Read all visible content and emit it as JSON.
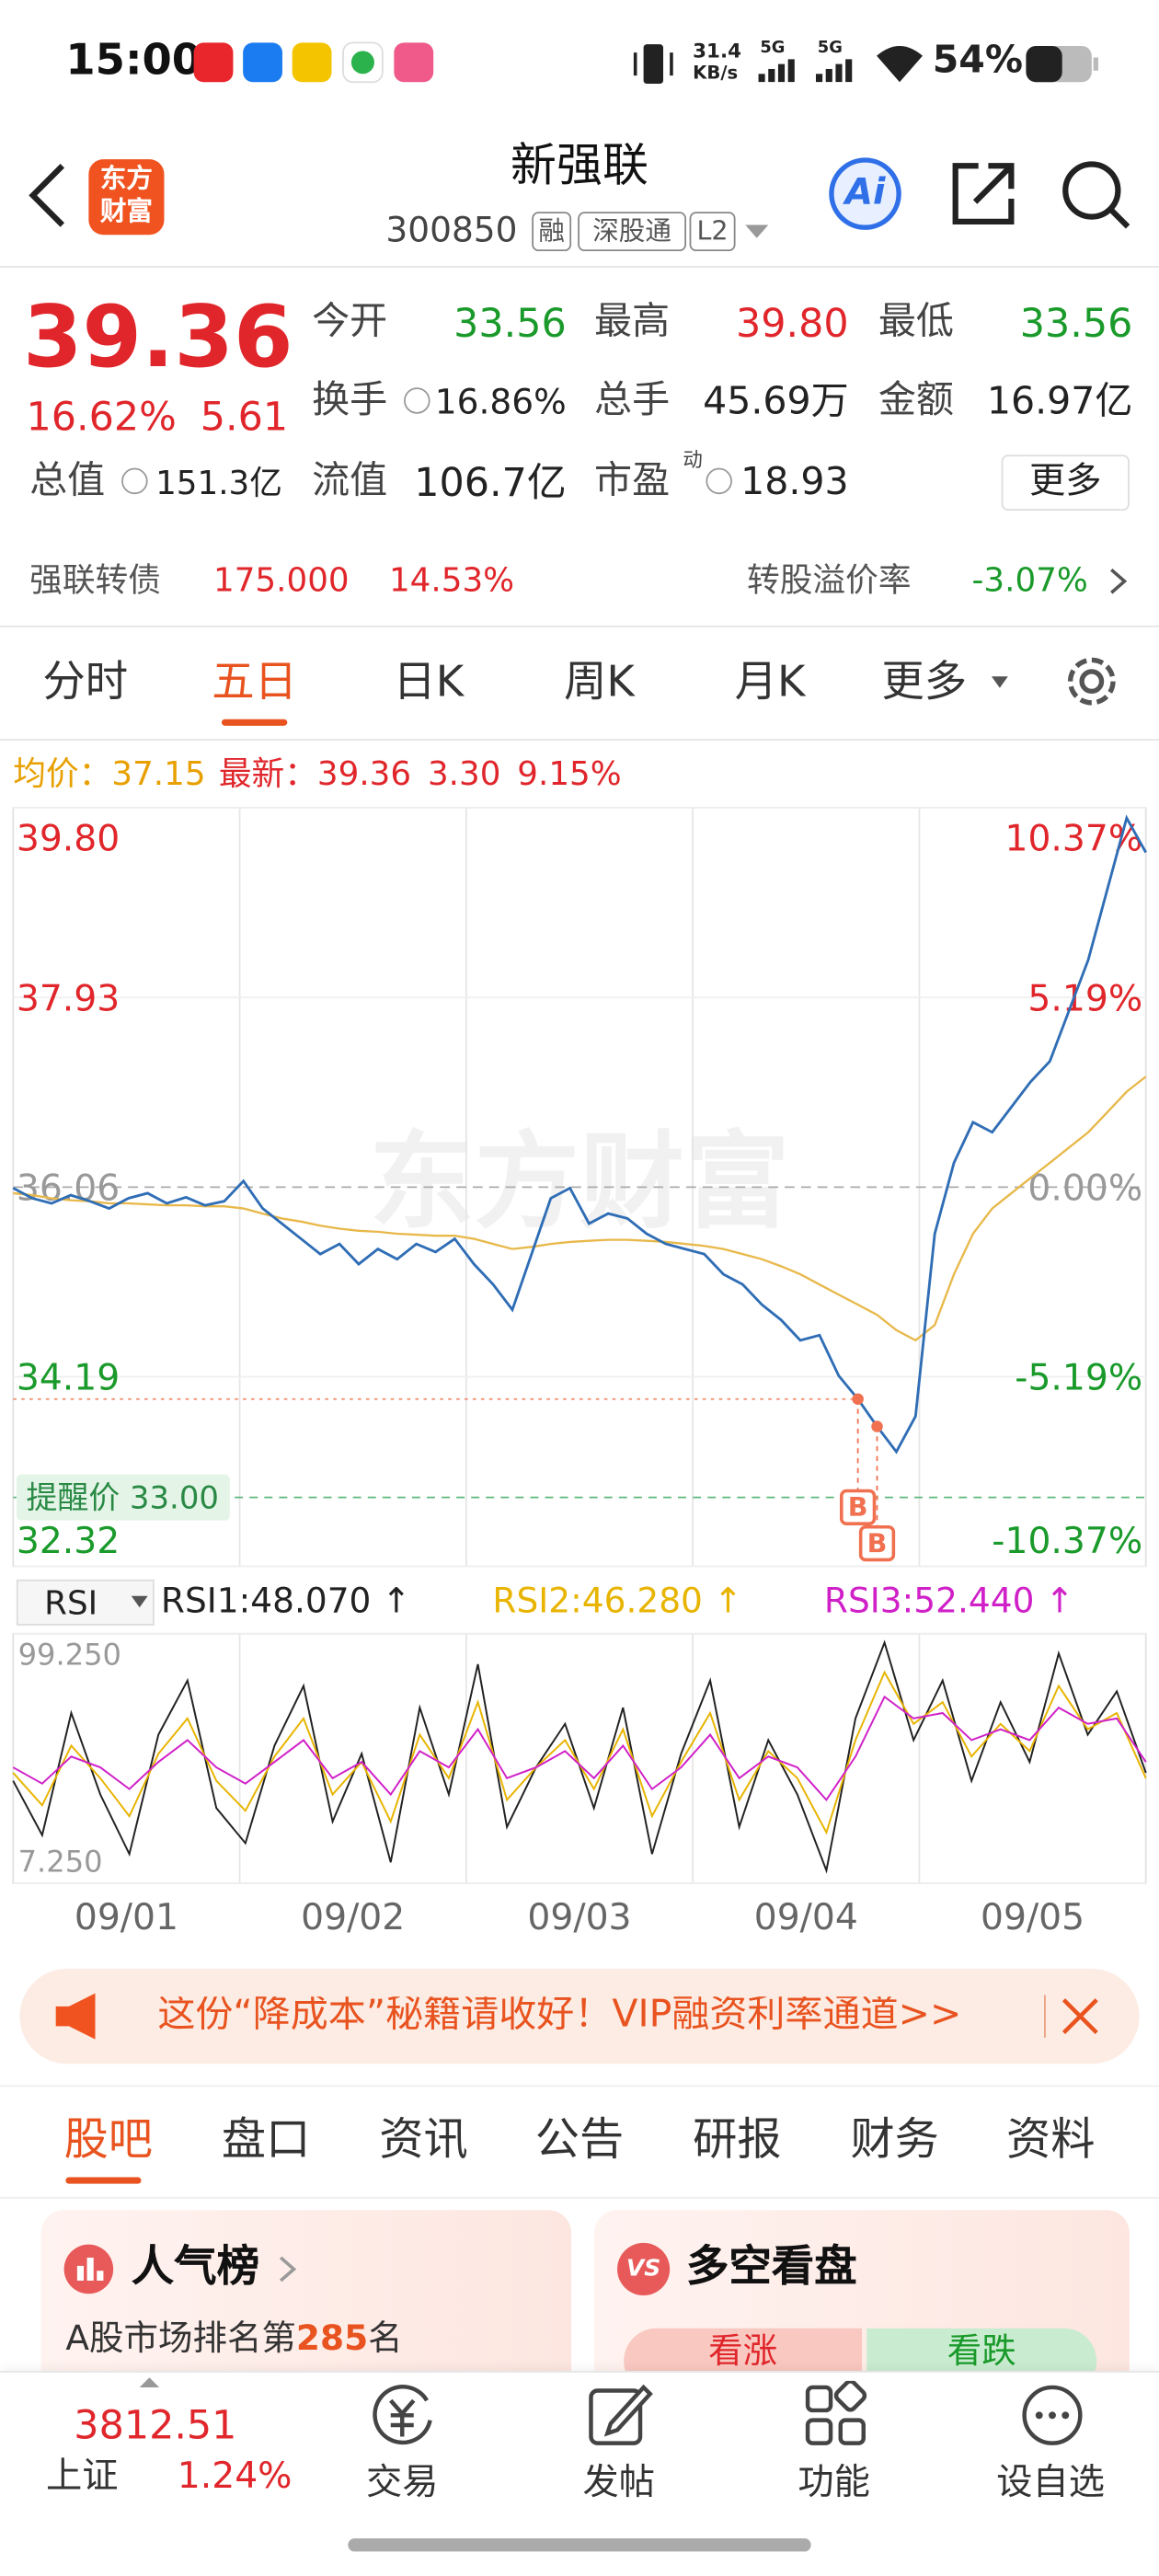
{
  "status_bar": {
    "time": "15:00",
    "net_speed": "31.4",
    "net_unit": "KB/s",
    "signal_1": "5G",
    "signal_2": "5G",
    "battery": "54%"
  },
  "header": {
    "logo_line1": "东方",
    "logo_line2": "财富",
    "title": "新强联",
    "code": "300850",
    "tags": [
      "融",
      "深股通",
      "L2"
    ],
    "ai": "Ai"
  },
  "quote": {
    "price": "39.36",
    "change_pct": "16.62%",
    "change": "5.61",
    "fields": [
      {
        "label": "今开",
        "value": "33.56",
        "color": "#1a9a2a"
      },
      {
        "label": "最高",
        "value": "39.80",
        "color": "#e0262b"
      },
      {
        "label": "最低",
        "value": "33.56",
        "color": "#1a9a2a"
      },
      {
        "label": "换手",
        "value": "16.86%"
      },
      {
        "label": "总手",
        "value": "45.69万"
      },
      {
        "label": "金额",
        "value": "16.97亿"
      },
      {
        "label": "总值",
        "value": "151.3亿"
      },
      {
        "label": "流值",
        "value": "106.7亿"
      },
      {
        "label": "市盈",
        "sup": "动",
        "value": "18.93"
      }
    ],
    "more": "更多"
  },
  "bond": {
    "name": "强联转债",
    "price": "175.000",
    "change": "14.53%",
    "premium_label": "转股溢价率",
    "premium": "-3.07%"
  },
  "chart_tabs": {
    "items": [
      "分时",
      "五日",
      "日K",
      "周K",
      "月K",
      "更多"
    ],
    "active": 1
  },
  "chart": {
    "avg_label": "均价：",
    "avg": "37.15",
    "latest_label": "最新：",
    "latest": "39.36",
    "latest_change": "3.30",
    "latest_pct": "9.15%",
    "watermark": "东方财富",
    "ylim": [
      32.32,
      39.8
    ],
    "yticks": [
      {
        "value": 39.8,
        "label": "39.80"
      },
      {
        "value": 37.93,
        "label": "37.93"
      },
      {
        "value": 36.06,
        "label": "36.06"
      },
      {
        "value": 34.19,
        "label": "34.19"
      },
      {
        "value": 32.32,
        "label": "32.32"
      }
    ],
    "pct_labels": [
      "10.37%",
      "5.19%",
      "0.00%",
      "-5.19%",
      "-10.37%"
    ],
    "series": [
      {
        "color": "#2f6db5",
        "values": [
          36.05,
          35.95,
          35.9,
          35.98,
          35.92,
          35.85,
          35.95,
          36.0,
          35.9,
          35.96,
          35.88,
          35.92,
          36.12,
          35.85,
          35.7,
          35.55,
          35.4,
          35.5,
          35.3,
          35.45,
          35.35,
          35.5,
          35.42,
          35.55,
          35.3,
          35.1,
          34.85,
          35.4,
          35.95,
          36.05,
          35.7,
          35.8,
          35.75,
          35.6,
          35.5,
          35.45,
          35.4,
          35.2,
          35.1,
          34.9,
          34.75,
          34.55,
          34.6,
          34.2,
          33.97,
          33.7,
          33.45,
          33.8,
          35.6,
          36.3,
          36.7,
          36.6,
          36.85,
          37.1,
          37.3,
          37.8,
          38.3,
          39.0,
          39.7,
          39.36
        ]
      },
      {
        "color": "#e8b84a",
        "values": [
          36.0,
          35.98,
          35.95,
          35.93,
          35.92,
          35.9,
          35.9,
          35.89,
          35.88,
          35.88,
          35.87,
          35.87,
          35.85,
          35.8,
          35.75,
          35.72,
          35.68,
          35.65,
          35.63,
          35.62,
          35.6,
          35.59,
          35.58,
          35.58,
          35.55,
          35.5,
          35.45,
          35.47,
          35.5,
          35.52,
          35.53,
          35.54,
          35.54,
          35.53,
          35.52,
          35.5,
          35.48,
          35.45,
          35.4,
          35.35,
          35.28,
          35.2,
          35.1,
          35.0,
          34.9,
          34.8,
          34.65,
          34.55,
          34.7,
          35.2,
          35.6,
          35.85,
          36.0,
          36.15,
          36.3,
          36.45,
          36.6,
          36.8,
          37.0,
          37.15
        ]
      }
    ],
    "alert": {
      "label": "提醒价",
      "value": 33.0,
      "value_label": "33.00"
    },
    "trade_line": 33.97,
    "markers": [
      {
        "label": "B",
        "x": 44,
        "value": 33.97
      },
      {
        "label": "B",
        "x": 45,
        "value": 33.7
      }
    ],
    "dates": [
      "09/01",
      "09/02",
      "09/03",
      "09/04",
      "09/05"
    ]
  },
  "rsi": {
    "selector": "RSI",
    "labels": [
      "RSI1:48.070 ↑",
      "RSI2:46.280 ↑",
      "RSI3:52.440 ↑"
    ],
    "ylim": [
      7.25,
      99.25
    ],
    "yticks": [
      {
        "value": 99.25,
        "label": "99.250"
      },
      {
        "value": 7.25,
        "label": "7.250"
      }
    ],
    "series": [
      {
        "color": "#222222",
        "values": [
          45,
          25,
          70,
          40,
          18,
          62,
          82,
          35,
          22,
          58,
          80,
          30,
          55,
          15,
          72,
          40,
          88,
          28,
          50,
          66,
          35,
          72,
          18,
          55,
          82,
          28,
          60,
          40,
          12,
          68,
          96,
          60,
          82,
          45,
          74,
          52,
          92,
          62,
          78,
          48
        ]
      },
      {
        "color": "#e8b400",
        "values": [
          48,
          36,
          58,
          46,
          32,
          55,
          68,
          45,
          34,
          54,
          68,
          40,
          52,
          30,
          62,
          46,
          74,
          38,
          50,
          60,
          42,
          64,
          32,
          52,
          70,
          38,
          56,
          46,
          26,
          60,
          85,
          66,
          74,
          54,
          66,
          56,
          80,
          64,
          70,
          46
        ]
      },
      {
        "color": "#d020c8",
        "values": [
          50,
          44,
          54,
          50,
          42,
          52,
          60,
          50,
          44,
          52,
          60,
          46,
          52,
          40,
          56,
          50,
          64,
          46,
          50,
          56,
          46,
          58,
          42,
          50,
          62,
          46,
          54,
          50,
          38,
          54,
          76,
          68,
          70,
          60,
          64,
          60,
          72,
          66,
          68,
          52
        ]
      }
    ]
  },
  "banner": {
    "text": "这份“降成本”秘籍请收好！VIP融资利率通道>>"
  },
  "content_tabs": {
    "items": [
      "股吧",
      "盘口",
      "资讯",
      "公告",
      "研报",
      "财务",
      "资料"
    ],
    "active": 0
  },
  "cards": {
    "popularity": {
      "title": "人气榜",
      "text_before": "A股市场排名第",
      "rank": "285",
      "text_after": "名"
    },
    "sentiment": {
      "icon": "VS",
      "title": "多空看盘",
      "bull": "看涨",
      "bear": "看跌"
    }
  },
  "bottom_nav": {
    "index_value": "3812.51",
    "index_name": "上证",
    "index_pct": "1.24%",
    "items": [
      "交易",
      "发帖",
      "功能",
      "设自选"
    ]
  }
}
